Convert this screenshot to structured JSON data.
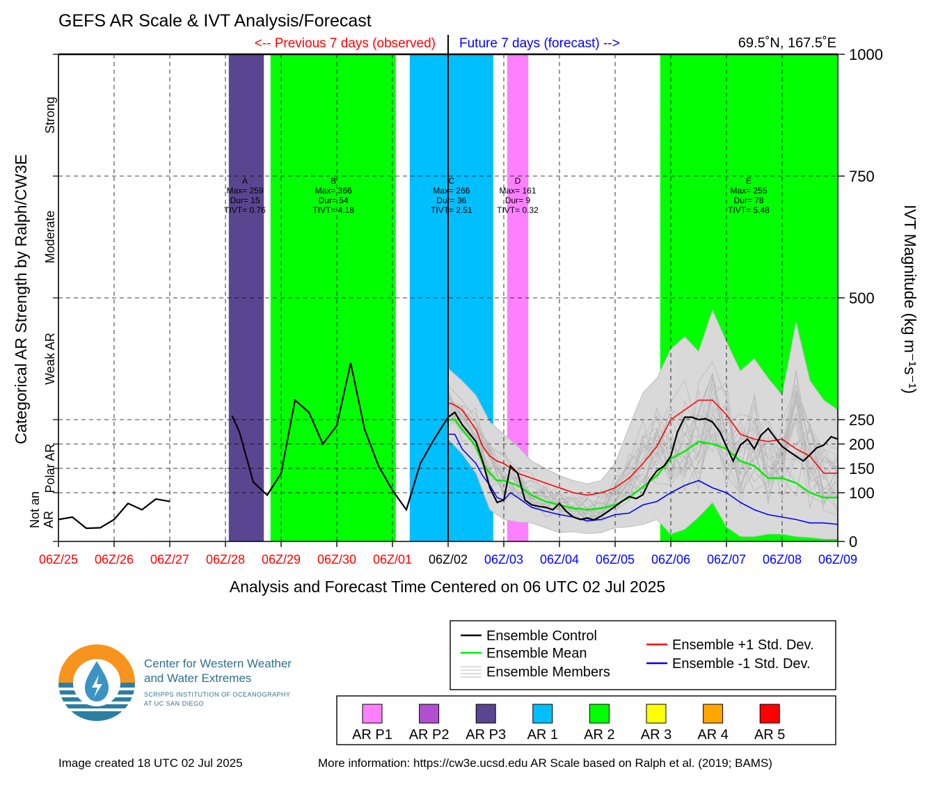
{
  "title": "GEFS AR Scale & IVT Analysis/Forecast",
  "header": {
    "previous": "<-- Previous 7 days (observed)",
    "future": "Future 7 days (forecast) -->",
    "location": "69.5˚N, 167.5˚E"
  },
  "footer": {
    "created": "Image created 18 UTC 02 Jul 2025",
    "info": "More information: https://cw3e.ucsd.edu AR Scale based on Ralph et al. (2019; BAMS)"
  },
  "logo": {
    "line1": "Center for Western Weather",
    "line2": "and Water Extremes",
    "line3": "SCRIPPS INSTITUTION OF OCEANOGRAPHY",
    "line4": "AT UC SAN DIEGO"
  },
  "legend": {
    "control": "Ensemble Control",
    "mean": "Ensemble Mean",
    "members": "Ensemble Members",
    "plus": "Ensemble +1 Std. Dev.",
    "minus": "Ensemble -1 Std. Dev."
  },
  "ar_legend": [
    {
      "label": "AR P1",
      "color": "#ff80ff"
    },
    {
      "label": "AR P2",
      "color": "#b050d0"
    },
    {
      "label": "AR P3",
      "color": "#5a4690"
    },
    {
      "label": "AR 1",
      "color": "#00bfff"
    },
    {
      "label": "AR 2",
      "color": "#00ff00"
    },
    {
      "label": "AR 3",
      "color": "#ffff00"
    },
    {
      "label": "AR 4",
      "color": "#ffa500"
    },
    {
      "label": "AR 5",
      "color": "#ff0000"
    }
  ],
  "chart_data": {
    "type": "line",
    "xlabel": "Analysis and Forecast Time Centered on 06 UTC 02 Jul 2025",
    "ylabel_left": "Categorical AR Strength by Ralph/CW3E",
    "ylabel_right": "IVT Magnitude (kg m⁻¹s⁻¹)",
    "xlim": [
      0,
      14
    ],
    "ylim": [
      0,
      1000
    ],
    "x_ticks": [
      {
        "label": "06Z/25",
        "color": "#ff0000"
      },
      {
        "label": "06Z/26",
        "color": "#ff0000"
      },
      {
        "label": "06Z/27",
        "color": "#ff0000"
      },
      {
        "label": "06Z/28",
        "color": "#ff0000"
      },
      {
        "label": "06Z/29",
        "color": "#ff0000"
      },
      {
        "label": "06Z/30",
        "color": "#ff0000"
      },
      {
        "label": "06Z/01",
        "color": "#ff0000"
      },
      {
        "label": "06Z/02",
        "color": "#000000"
      },
      {
        "label": "06Z/03",
        "color": "#0000ff"
      },
      {
        "label": "06Z/04",
        "color": "#0000ff"
      },
      {
        "label": "06Z/05",
        "color": "#0000ff"
      },
      {
        "label": "06Z/06",
        "color": "#0000ff"
      },
      {
        "label": "06Z/07",
        "color": "#0000ff"
      },
      {
        "label": "06Z/08",
        "color": "#0000ff"
      },
      {
        "label": "06Z/09",
        "color": "#0000ff"
      }
    ],
    "y_ticks": [
      0,
      100,
      150,
      200,
      250,
      500,
      750,
      1000
    ],
    "categories_left": [
      {
        "label": "Strong",
        "y": 875
      },
      {
        "label": "Moderate",
        "y": 625
      },
      {
        "label": "Weak AR",
        "y": 375
      },
      {
        "label": "Polar AR",
        "y": 150
      },
      {
        "label": "Not an",
        "y": 65
      },
      {
        "label": "AR",
        "y": 45
      }
    ],
    "ar_events": [
      {
        "id": "A",
        "start": 3.06,
        "end": 3.69,
        "category": "AR P3",
        "color": "#5a4690",
        "max": "Max= 259",
        "dur": "Dur= 15",
        "tivt": "TIVT= 0.76",
        "label_x": 3.35
      },
      {
        "id": "B",
        "start": 3.81,
        "end": 6.06,
        "category": "AR 2",
        "color": "#00ff00",
        "max": "Max= 366",
        "dur": "Dur= 54",
        "tivt": "TIVT= 4.18",
        "label_x": 4.94
      },
      {
        "id": "C",
        "start": 6.31,
        "end": 7.81,
        "category": "AR 1",
        "color": "#00bfff",
        "max": "Max= 266",
        "dur": "Dur= 36",
        "tivt": "TIVT= 2.51",
        "label_x": 7.06
      },
      {
        "id": "D",
        "start": 8.06,
        "end": 8.44,
        "category": "AR P1",
        "color": "#ff80ff",
        "max": "Max= 161",
        "dur": "Dur= 9",
        "tivt": "TIVT= 0.32",
        "label_x": 8.25
      },
      {
        "id": "E",
        "start": 10.81,
        "end": 14.0,
        "category": "AR 2",
        "color": "#00ff00",
        "max": "Max= 255",
        "dur": "Dur= 78",
        "tivt": "TIVT= 5.48",
        "label_x": 12.4
      }
    ],
    "series": [
      {
        "name": "Ensemble Control",
        "color": "#000000",
        "segments": [
          {
            "x": [
              0,
              0.25,
              0.5,
              0.75,
              1.0,
              1.25,
              1.5,
              1.75,
              2.0
            ],
            "y": [
              45,
              50,
              27,
              28,
              45,
              78,
              65,
              87,
              82
            ]
          },
          {
            "x": [
              3.12,
              3.25,
              3.5,
              3.75,
              4.0,
              4.25,
              4.5,
              4.75,
              5.0,
              5.25,
              5.5,
              5.75,
              6.0,
              6.25,
              6.5,
              6.75,
              7.0,
              7.12,
              7.25,
              7.5,
              7.62,
              7.75,
              7.88,
              8.0,
              8.12,
              8.25,
              8.38,
              8.5,
              8.62,
              8.75,
              8.88,
              9.0,
              9.12,
              9.25,
              9.38,
              9.5,
              9.62,
              9.75,
              9.88,
              10.0,
              10.12,
              10.25,
              10.38,
              10.5,
              10.62,
              10.75,
              10.88,
              11.0,
              11.12,
              11.25,
              11.38,
              11.5,
              11.62,
              11.75,
              11.88,
              12.0,
              12.12,
              12.25,
              12.38,
              12.5,
              12.62,
              12.75,
              12.88,
              13.0,
              13.12,
              13.25,
              13.38,
              13.5,
              13.62,
              13.75,
              13.88,
              14.0
            ],
            "y": [
              258,
              225,
              122,
              95,
              140,
              290,
              265,
              200,
              238,
              366,
              230,
              155,
              105,
              65,
              160,
              210,
              255,
              265,
              240,
              205,
              165,
              110,
              80,
              85,
              155,
              140,
              85,
              75,
              72,
              70,
              65,
              78,
              62,
              50,
              45,
              48,
              44,
              52,
              62,
              72,
              82,
              92,
              88,
              96,
              125,
              145,
              155,
              175,
              225,
              255,
              255,
              250,
              252,
              245,
              225,
              195,
              165,
              198,
              210,
              190,
              218,
              232,
              212,
              195,
              185,
              175,
              165,
              178,
              192,
              198,
              215,
              210
            ]
          }
        ]
      },
      {
        "name": "Ensemble Mean",
        "color": "#00ee00",
        "x": [
          7.0,
          7.12,
          7.25,
          7.5,
          7.62,
          7.75,
          7.88,
          8.0,
          8.25,
          8.5,
          8.75,
          9.0,
          9.25,
          9.5,
          9.75,
          10.0,
          10.25,
          10.5,
          10.75,
          11.0,
          11.25,
          11.5,
          11.75,
          12.0,
          12.25,
          12.5,
          12.75,
          13.0,
          13.25,
          13.5,
          13.75,
          14.0
        ],
        "y": [
          250,
          250,
          230,
          195,
          160,
          140,
          125,
          125,
          115,
          95,
          82,
          75,
          68,
          65,
          68,
          75,
          90,
          112,
          135,
          170,
          185,
          205,
          200,
          190,
          165,
          155,
          130,
          130,
          120,
          100,
          90,
          90
        ]
      },
      {
        "name": "Ensemble +1 Std. Dev.",
        "color": "#ff0000",
        "x": [
          7.0,
          7.12,
          7.25,
          7.5,
          7.62,
          7.75,
          7.88,
          8.0,
          8.25,
          8.5,
          8.75,
          9.0,
          9.25,
          9.5,
          9.75,
          10.0,
          10.25,
          10.5,
          10.75,
          11.0,
          11.25,
          11.5,
          11.75,
          12.0,
          12.25,
          12.5,
          12.75,
          13.0,
          13.25,
          13.5,
          13.75,
          14.0
        ],
        "y": [
          285,
          280,
          270,
          230,
          195,
          175,
          165,
          160,
          140,
          130,
          120,
          110,
          100,
          95,
          100,
          110,
          130,
          160,
          195,
          250,
          270,
          290,
          290,
          260,
          220,
          210,
          205,
          210,
          190,
          175,
          140,
          140
        ]
      },
      {
        "name": "Ensemble -1 Std. Dev.",
        "color": "#0000ff",
        "x": [
          7.0,
          7.12,
          7.25,
          7.5,
          7.62,
          7.75,
          7.88,
          8.0,
          8.12,
          8.25,
          8.5,
          8.75,
          9.0,
          9.25,
          9.5,
          9.75,
          10.0,
          10.25,
          10.5,
          10.75,
          11.0,
          11.25,
          11.5,
          11.75,
          12.0,
          12.25,
          12.5,
          12.75,
          13.0,
          13.25,
          13.5,
          13.75,
          14.0
        ],
        "y": [
          220,
          220,
          190,
          160,
          135,
          115,
          90,
          85,
          100,
          90,
          70,
          62,
          55,
          50,
          42,
          45,
          55,
          58,
          75,
          82,
          100,
          115,
          125,
          110,
          100,
          80,
          65,
          55,
          50,
          45,
          38,
          38,
          35
        ]
      },
      {
        "name": "Ensemble Members",
        "color": "#b8b8b8",
        "x": [
          7.0,
          7.25,
          7.5,
          7.75,
          8.0,
          8.25,
          8.5,
          8.75,
          9.0,
          9.25,
          9.5,
          9.75,
          10.0,
          10.25,
          10.5,
          10.75,
          11.0,
          11.25,
          11.5,
          11.75,
          12.0,
          12.25,
          12.5,
          12.75,
          13.0,
          13.25,
          13.5,
          13.75,
          14.0
        ],
        "envelope_max": [
          355,
          330,
          300,
          245,
          220,
          195,
          165,
          150,
          135,
          125,
          118,
          125,
          160,
          235,
          305,
          335,
          395,
          420,
          390,
          475,
          410,
          350,
          375,
          335,
          300,
          450,
          330,
          290,
          270
        ],
        "envelope_min": [
          210,
          180,
          140,
          65,
          45,
          40,
          38,
          28,
          18,
          20,
          16,
          18,
          28,
          30,
          35,
          45,
          15,
          25,
          50,
          80,
          30,
          10,
          10,
          15,
          15,
          10,
          8,
          5,
          5
        ]
      }
    ]
  }
}
